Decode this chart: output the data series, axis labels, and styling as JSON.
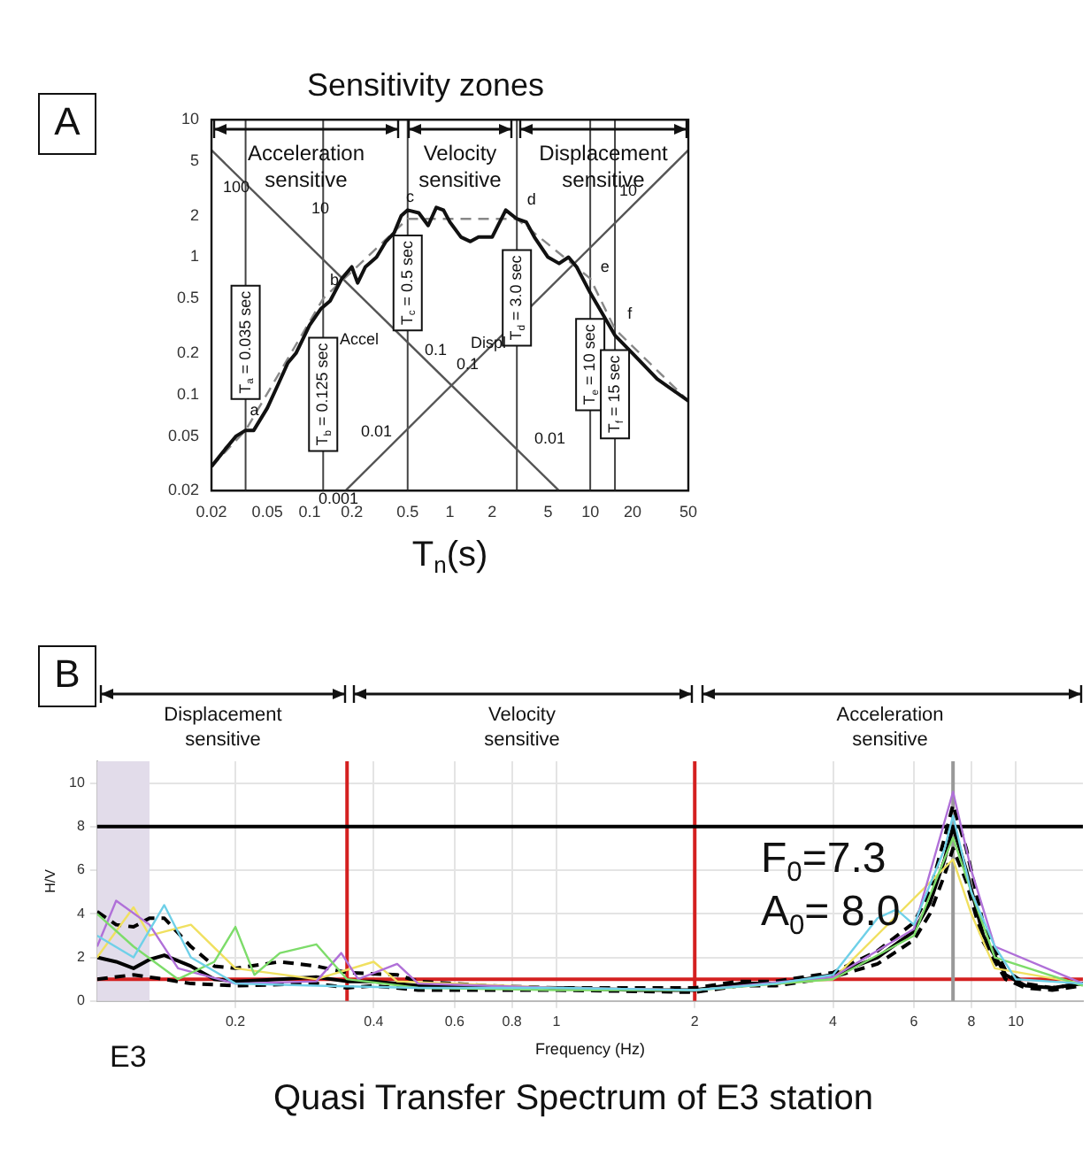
{
  "chart_data": [
    {
      "type": "line",
      "title": "Sensitivity zones",
      "xlabel": "T$_{n}$(s)",
      "log": "xy",
      "xlim": [
        0.02,
        50
      ],
      "ylim": [
        0.02,
        10
      ],
      "xticks": [
        0.02,
        0.05,
        0.1,
        0.2,
        0.5,
        1,
        2,
        5,
        10,
        20,
        50
      ],
      "yticks": [
        0.02,
        0.05,
        0.1,
        0.2,
        0.5,
        1,
        2,
        5,
        10
      ],
      "grid": false,
      "legend": false,
      "series": [
        {
          "color": "#111111",
          "x": [
            0.02,
            0.025,
            0.03,
            0.035,
            0.04,
            0.05,
            0.06,
            0.07,
            0.08,
            0.1,
            0.12,
            0.14,
            0.17,
            0.2,
            0.22,
            0.25,
            0.3,
            0.35,
            0.4,
            0.45,
            0.5,
            0.6,
            0.7,
            0.8,
            0.9,
            1.0,
            1.2,
            1.4,
            1.6,
            2.0,
            2.5,
            3.0,
            3.5,
            4,
            5,
            6,
            7,
            8,
            10,
            12,
            15,
            20,
            30,
            50
          ],
          "values": [
            0.03,
            0.04,
            0.05,
            0.055,
            0.055,
            0.08,
            0.12,
            0.17,
            0.2,
            0.32,
            0.42,
            0.48,
            0.7,
            0.85,
            0.65,
            0.85,
            1.0,
            1.3,
            1.5,
            2.0,
            2.2,
            2.1,
            1.7,
            2.3,
            2.2,
            1.8,
            1.4,
            1.3,
            1.4,
            1.4,
            2.2,
            1.9,
            1.8,
            1.4,
            1.0,
            0.9,
            1.0,
            0.85,
            0.55,
            0.4,
            0.27,
            0.2,
            0.13,
            0.09
          ]
        },
        {
          "color": "#888888",
          "line_style": "dashed",
          "x": [
            0.02,
            0.035,
            0.125,
            0.5,
            3,
            10,
            15,
            50
          ],
          "values": [
            0.03,
            0.055,
            0.5,
            1.9,
            1.9,
            0.7,
            0.3,
            0.09
          ]
        },
        {
          "color": "#555555",
          "x": [
            0.02,
            6
          ],
          "values": [
            6,
            0.02
          ]
        },
        {
          "color": "#555555",
          "x": [
            0.18,
            50
          ],
          "values": [
            0.02,
            6
          ]
        }
      ],
      "ref_lines": [
        {
          "axis": "x",
          "value": 0.035,
          "label": "T$_{a}$ = 0.035 sec"
        },
        {
          "axis": "x",
          "value": 0.125,
          "label": "T$_{b}$ = 0.125 sec"
        },
        {
          "axis": "x",
          "value": 0.5,
          "label": "T$_{c}$ = 0.5 sec"
        },
        {
          "axis": "x",
          "value": 3,
          "label": "T$_{d}$ = 3.0 sec"
        },
        {
          "axis": "x",
          "value": 10,
          "label": "T$_{e}$ = 10 sec"
        },
        {
          "axis": "x",
          "value": 15,
          "label": "T$_{f}$ = 15 sec"
        }
      ],
      "annotations": [
        "A",
        "Acceleration sensitive",
        "Velocity sensitive",
        "Displacement sensitive",
        {
          "text": "a",
          "x": 0.035,
          "y": 0.068
        },
        {
          "text": "b",
          "x": 0.13,
          "y": 0.6
        },
        {
          "text": "c",
          "x": 0.45,
          "y": 2.4
        },
        {
          "text": "d",
          "x": 3.3,
          "y": 2.3
        },
        {
          "text": "e",
          "x": 11,
          "y": 0.75
        },
        {
          "text": "f",
          "x": 16.5,
          "y": 0.34
        },
        "100",
        "10",
        "Accel",
        "0.1",
        "0.01",
        "0.001",
        "0.01",
        "0.1",
        "Displ",
        "10"
      ]
    },
    {
      "type": "line",
      "title": "Quasi Transfer Spectrum of E3 station",
      "xlabel": "Frequency (Hz)",
      "ylabel": "H/V",
      "log": "x",
      "xlim": [
        0.1,
        14
      ],
      "ylim": [
        0,
        11
      ],
      "xticks": [
        0.2,
        0.4,
        0.6,
        0.8,
        1,
        2,
        4,
        6,
        8,
        10
      ],
      "yticks": [
        0,
        2,
        4,
        6,
        8,
        10
      ],
      "grid": true,
      "legend": false,
      "series": [
        {
          "color": "#6fd0e8",
          "x": [
            0.1,
            0.12,
            0.14,
            0.16,
            0.2,
            0.3,
            0.5,
            1,
            2,
            3,
            4,
            5,
            5.5,
            6,
            7,
            7.3,
            8,
            9,
            10,
            14
          ],
          "values": [
            3.0,
            2.0,
            4.4,
            2,
            0.8,
            0.7,
            0.6,
            0.6,
            0.5,
            0.8,
            1.2,
            3.8,
            4.2,
            3.5,
            7,
            8.5,
            5,
            2.5,
            1,
            0.8
          ]
        },
        {
          "color": "#7ddc6a",
          "x": [
            0.1,
            0.12,
            0.15,
            0.18,
            0.2,
            0.22,
            0.25,
            0.3,
            0.35,
            0.5,
            1,
            2,
            4,
            6,
            7.3,
            8,
            9,
            14
          ],
          "values": [
            4.0,
            2.5,
            1.0,
            1.8,
            3.4,
            1.2,
            2.2,
            2.6,
            1.0,
            0.6,
            0.5,
            0.5,
            1.0,
            3.0,
            7.5,
            5,
            2,
            0.7
          ]
        },
        {
          "color": "#b070d8",
          "x": [
            0.1,
            0.11,
            0.13,
            0.15,
            0.2,
            0.3,
            0.34,
            0.37,
            0.45,
            0.5,
            1,
            2,
            4,
            6,
            7.3,
            8,
            9,
            14
          ],
          "values": [
            2.5,
            4.6,
            3.5,
            1.5,
            0.8,
            0.9,
            2.2,
            1.0,
            1.7,
            0.8,
            0.6,
            0.5,
            1.1,
            3.3,
            9.6,
            6,
            2.5,
            0.8
          ]
        },
        {
          "color": "#f0e060",
          "x": [
            0.1,
            0.12,
            0.13,
            0.16,
            0.2,
            0.3,
            0.4,
            0.45,
            1,
            2,
            4,
            7.3,
            8,
            9,
            14
          ],
          "values": [
            2,
            4.3,
            3.0,
            3.5,
            1.5,
            1.0,
            1.8,
            0.9,
            0.6,
            0.5,
            1.0,
            6.5,
            4,
            1.5,
            0.8
          ]
        },
        {
          "color": "#000000",
          "x": [
            0.1,
            0.11,
            0.12,
            0.13,
            0.14,
            0.16,
            0.18,
            0.2,
            0.25,
            0.3,
            0.35,
            0.4,
            0.5,
            0.7,
            1,
            1.5,
            2,
            2.5,
            3,
            4,
            5,
            6,
            6.5,
            7,
            7.3,
            7.8,
            8.5,
            9.5,
            10.5,
            12,
            14
          ],
          "values": [
            2,
            1.8,
            1.5,
            1.9,
            2.1,
            1.6,
            1.0,
            0.9,
            1.0,
            1.1,
            0.9,
            0.9,
            0.7,
            0.6,
            0.6,
            0.5,
            0.5,
            0.8,
            0.8,
            1.2,
            2.0,
            3.2,
            4.5,
            6.5,
            8.0,
            6,
            3,
            1.2,
            0.7,
            0.6,
            0.8
          ]
        },
        {
          "color": "#000000",
          "line_style": "dashed",
          "x": [
            0.1,
            0.11,
            0.12,
            0.13,
            0.14,
            0.16,
            0.18,
            0.2,
            0.25,
            0.3,
            0.35,
            0.45,
            0.5,
            0.7,
            1,
            2,
            2.5,
            3,
            4,
            5,
            6,
            6.5,
            7,
            7.3,
            7.8,
            8.5,
            9.5,
            10.5,
            12,
            14
          ],
          "values": [
            4.1,
            3.5,
            3.4,
            3.8,
            3.8,
            2.5,
            1.6,
            1.5,
            1.8,
            1.6,
            1.3,
            1.2,
            0.9,
            0.7,
            0.6,
            0.6,
            0.9,
            0.9,
            1.3,
            2.3,
            3.6,
            5,
            7.5,
            9.0,
            7,
            3.5,
            1.4,
            0.8,
            0.6,
            0.8
          ]
        },
        {
          "color": "#000000",
          "line_style": "dashed",
          "x": [
            0.1,
            0.12,
            0.14,
            0.16,
            0.2,
            0.3,
            0.35,
            0.4,
            0.5,
            0.7,
            1,
            2,
            2.5,
            3,
            4,
            5,
            6,
            6.5,
            7,
            7.3,
            7.8,
            8.5,
            9.5,
            10.5,
            12,
            14
          ],
          "values": [
            1.0,
            1.2,
            1.0,
            0.8,
            0.7,
            0.8,
            0.6,
            0.7,
            0.5,
            0.5,
            0.5,
            0.4,
            0.7,
            0.7,
            1.1,
            1.7,
            2.8,
            4,
            5.8,
            7.0,
            5.5,
            2.7,
            1.0,
            0.6,
            0.5,
            0.7
          ]
        }
      ],
      "ref_lines": [
        {
          "axis": "x",
          "value": 0.35,
          "color": "#d42020"
        },
        {
          "axis": "x",
          "value": 2,
          "color": "#d42020"
        },
        {
          "axis": "y",
          "value": 1,
          "color": "#d42020"
        },
        {
          "axis": "x",
          "value": 7.3,
          "color": "#999999"
        },
        {
          "axis": "y",
          "value": 8,
          "color": "#000000"
        }
      ],
      "bands": [
        {
          "axis": "x",
          "from": 0.1,
          "to": 0.13,
          "color": "#e2dcea"
        }
      ],
      "annotations": [
        "B",
        "Displacement sensitive",
        "Velocity sensitive",
        "Acceleration sensitive",
        "F$_{0}$=7.3",
        "A$_{0}$= 8.0",
        "E3"
      ]
    }
  ]
}
